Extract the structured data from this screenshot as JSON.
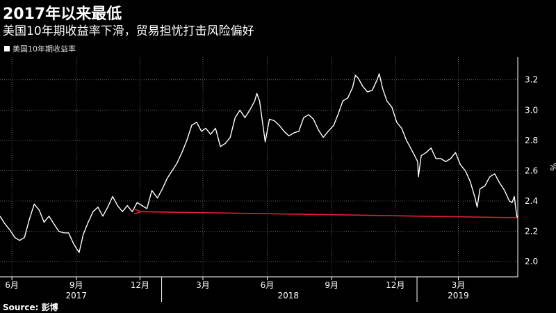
{
  "header": {
    "title": "2017年以来最低",
    "subtitle": "美国10年期收益率下滑，贸易担忧打击风险偏好"
  },
  "legend": {
    "label": "美国10年期收益率"
  },
  "source": "Source: 彭博",
  "colors": {
    "line": "#ffffff",
    "annotation": "#e0203a",
    "grid": "#777777",
    "background": "#000000"
  },
  "chart_data": {
    "type": "line",
    "title": "2017年以来最低",
    "subtitle": "美国10年期收益率下滑，贸易担忧打击风险偏好",
    "ylabel": "%",
    "ylim": [
      1.9,
      3.35
    ],
    "yticks": [
      2.0,
      2.2,
      2.4,
      2.6,
      2.8,
      3.0,
      3.2
    ],
    "xlim": [
      "2017-05-15",
      "2019-05-25"
    ],
    "xticks": [
      {
        "date": "2017-06-01",
        "label": "6月"
      },
      {
        "date": "2017-09-01",
        "label": "9月"
      },
      {
        "date": "2017-12-01",
        "label": "12月"
      },
      {
        "date": "2018-03-01",
        "label": "3月"
      },
      {
        "date": "2018-06-01",
        "label": "6月"
      },
      {
        "date": "2018-09-01",
        "label": "9月"
      },
      {
        "date": "2018-12-01",
        "label": "12月"
      },
      {
        "date": "2019-03-01",
        "label": "3月"
      }
    ],
    "year_labels": [
      {
        "date": "2017-09-01",
        "label": "2017"
      },
      {
        "date": "2018-07-01",
        "label": "2018"
      },
      {
        "date": "2019-03-01",
        "label": "2019"
      }
    ],
    "grid": true,
    "legend_position": "top-left",
    "series": [
      {
        "name": "美国10年期收益率",
        "points": [
          [
            "2017-05-15",
            2.3
          ],
          [
            "2017-05-22",
            2.25
          ],
          [
            "2017-05-29",
            2.21
          ],
          [
            "2017-06-05",
            2.16
          ],
          [
            "2017-06-12",
            2.14
          ],
          [
            "2017-06-19",
            2.16
          ],
          [
            "2017-06-26",
            2.28
          ],
          [
            "2017-07-03",
            2.38
          ],
          [
            "2017-07-10",
            2.34
          ],
          [
            "2017-07-17",
            2.26
          ],
          [
            "2017-07-24",
            2.3
          ],
          [
            "2017-07-31",
            2.25
          ],
          [
            "2017-08-07",
            2.2
          ],
          [
            "2017-08-14",
            2.19
          ],
          [
            "2017-08-21",
            2.19
          ],
          [
            "2017-08-28",
            2.12
          ],
          [
            "2017-09-05",
            2.06
          ],
          [
            "2017-09-11",
            2.18
          ],
          [
            "2017-09-18",
            2.26
          ],
          [
            "2017-09-25",
            2.33
          ],
          [
            "2017-10-02",
            2.36
          ],
          [
            "2017-10-09",
            2.3
          ],
          [
            "2017-10-16",
            2.36
          ],
          [
            "2017-10-23",
            2.43
          ],
          [
            "2017-10-30",
            2.37
          ],
          [
            "2017-11-06",
            2.33
          ],
          [
            "2017-11-13",
            2.37
          ],
          [
            "2017-11-20",
            2.33
          ],
          [
            "2017-11-27",
            2.39
          ],
          [
            "2017-12-04",
            2.37
          ],
          [
            "2017-12-11",
            2.35
          ],
          [
            "2017-12-18",
            2.47
          ],
          [
            "2017-12-26",
            2.42
          ],
          [
            "2018-01-02",
            2.48
          ],
          [
            "2018-01-09",
            2.55
          ],
          [
            "2018-01-16",
            2.6
          ],
          [
            "2018-01-23",
            2.65
          ],
          [
            "2018-01-30",
            2.72
          ],
          [
            "2018-02-06",
            2.8
          ],
          [
            "2018-02-13",
            2.9
          ],
          [
            "2018-02-20",
            2.92
          ],
          [
            "2018-02-27",
            2.86
          ],
          [
            "2018-03-05",
            2.88
          ],
          [
            "2018-03-12",
            2.84
          ],
          [
            "2018-03-19",
            2.88
          ],
          [
            "2018-03-26",
            2.76
          ],
          [
            "2018-04-02",
            2.78
          ],
          [
            "2018-04-09",
            2.82
          ],
          [
            "2018-04-16",
            2.95
          ],
          [
            "2018-04-23",
            3.0
          ],
          [
            "2018-04-30",
            2.95
          ],
          [
            "2018-05-07",
            3.0
          ],
          [
            "2018-05-14",
            3.06
          ],
          [
            "2018-05-17",
            3.11
          ],
          [
            "2018-05-21",
            3.06
          ],
          [
            "2018-05-29",
            2.79
          ],
          [
            "2018-06-04",
            2.94
          ],
          [
            "2018-06-11",
            2.93
          ],
          [
            "2018-06-18",
            2.9
          ],
          [
            "2018-06-25",
            2.86
          ],
          [
            "2018-07-02",
            2.83
          ],
          [
            "2018-07-09",
            2.85
          ],
          [
            "2018-07-16",
            2.86
          ],
          [
            "2018-07-23",
            2.95
          ],
          [
            "2018-07-30",
            2.97
          ],
          [
            "2018-08-06",
            2.94
          ],
          [
            "2018-08-13",
            2.87
          ],
          [
            "2018-08-20",
            2.82
          ],
          [
            "2018-08-27",
            2.86
          ],
          [
            "2018-09-04",
            2.9
          ],
          [
            "2018-09-10",
            2.97
          ],
          [
            "2018-09-17",
            3.06
          ],
          [
            "2018-09-24",
            3.08
          ],
          [
            "2018-10-01",
            3.15
          ],
          [
            "2018-10-05",
            3.23
          ],
          [
            "2018-10-09",
            3.21
          ],
          [
            "2018-10-15",
            3.16
          ],
          [
            "2018-10-22",
            3.12
          ],
          [
            "2018-10-29",
            3.13
          ],
          [
            "2018-11-05",
            3.2
          ],
          [
            "2018-11-08",
            3.24
          ],
          [
            "2018-11-13",
            3.14
          ],
          [
            "2018-11-19",
            3.06
          ],
          [
            "2018-11-26",
            3.02
          ],
          [
            "2018-12-03",
            2.92
          ],
          [
            "2018-12-10",
            2.88
          ],
          [
            "2018-12-17",
            2.8
          ],
          [
            "2018-12-24",
            2.74
          ],
          [
            "2019-01-02",
            2.66
          ],
          [
            "2019-01-03",
            2.56
          ],
          [
            "2019-01-07",
            2.7
          ],
          [
            "2019-01-14",
            2.72
          ],
          [
            "2019-01-21",
            2.75
          ],
          [
            "2019-01-28",
            2.68
          ],
          [
            "2019-02-04",
            2.68
          ],
          [
            "2019-02-11",
            2.66
          ],
          [
            "2019-02-18",
            2.68
          ],
          [
            "2019-02-25",
            2.72
          ],
          [
            "2019-03-04",
            2.64
          ],
          [
            "2019-03-11",
            2.6
          ],
          [
            "2019-03-18",
            2.53
          ],
          [
            "2019-03-25",
            2.42
          ],
          [
            "2019-03-28",
            2.36
          ],
          [
            "2019-04-01",
            2.48
          ],
          [
            "2019-04-08",
            2.5
          ],
          [
            "2019-04-15",
            2.56
          ],
          [
            "2019-04-22",
            2.58
          ],
          [
            "2019-04-29",
            2.52
          ],
          [
            "2019-05-06",
            2.47
          ],
          [
            "2019-05-13",
            2.4
          ],
          [
            "2019-05-17",
            2.39
          ],
          [
            "2019-05-20",
            2.43
          ],
          [
            "2019-05-23",
            2.32
          ],
          [
            "2019-05-24",
            2.29
          ]
        ]
      }
    ],
    "annotations": [
      {
        "type": "arrow",
        "from": [
          "2019-05-24",
          2.29
        ],
        "to": [
          "2017-12-01",
          2.33
        ]
      }
    ]
  }
}
